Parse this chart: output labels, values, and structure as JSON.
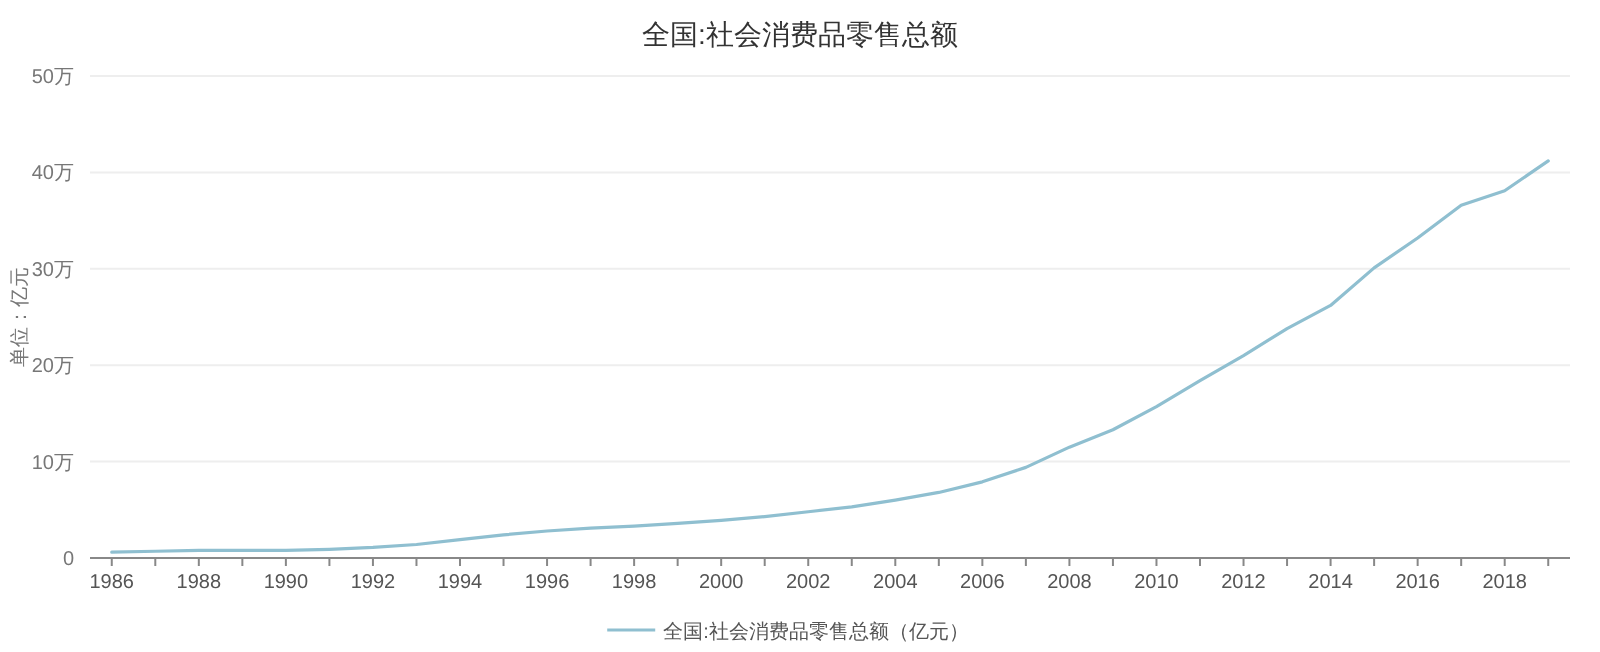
{
  "chart_data": {
    "type": "line",
    "title": "全国:社会消费品零售总额",
    "ylabel": "单位：亿元",
    "categories": [
      "1986",
      null,
      "1988",
      null,
      "1990",
      null,
      "1992",
      null,
      "1994",
      null,
      "1996",
      null,
      "1998",
      null,
      "2000",
      null,
      "2002",
      null,
      "2004",
      null,
      "2006",
      null,
      "2008",
      null,
      "2010",
      null,
      "2012",
      null,
      "2014",
      null,
      "2016",
      null,
      "2018",
      null
    ],
    "series": [
      {
        "name": "全国:社会消费品零售总额（亿元）",
        "color": "#8fbfd0",
        "values": [
          0.6,
          0.7,
          0.8,
          0.8,
          0.8,
          0.9,
          1.1,
          1.4,
          1.9,
          2.4,
          2.8,
          3.1,
          3.3,
          3.6,
          3.9,
          4.3,
          4.8,
          5.3,
          6.0,
          6.8,
          7.9,
          9.4,
          11.5,
          13.3,
          15.7,
          18.4,
          21.0,
          23.8,
          26.2,
          30.1,
          33.2,
          36.6,
          38.1,
          41.2
        ]
      }
    ],
    "ylim": [
      0,
      50
    ],
    "yticks": [
      0,
      {
        "value": 10,
        "label": "10万"
      },
      {
        "value": 20,
        "label": "20万"
      },
      {
        "value": 30,
        "label": "30万"
      },
      {
        "value": 40,
        "label": "40万"
      },
      {
        "value": 50,
        "label": "50万"
      }
    ],
    "grid": "y",
    "legend": "bottom",
    "marker": "none",
    "line_style": "solid"
  }
}
